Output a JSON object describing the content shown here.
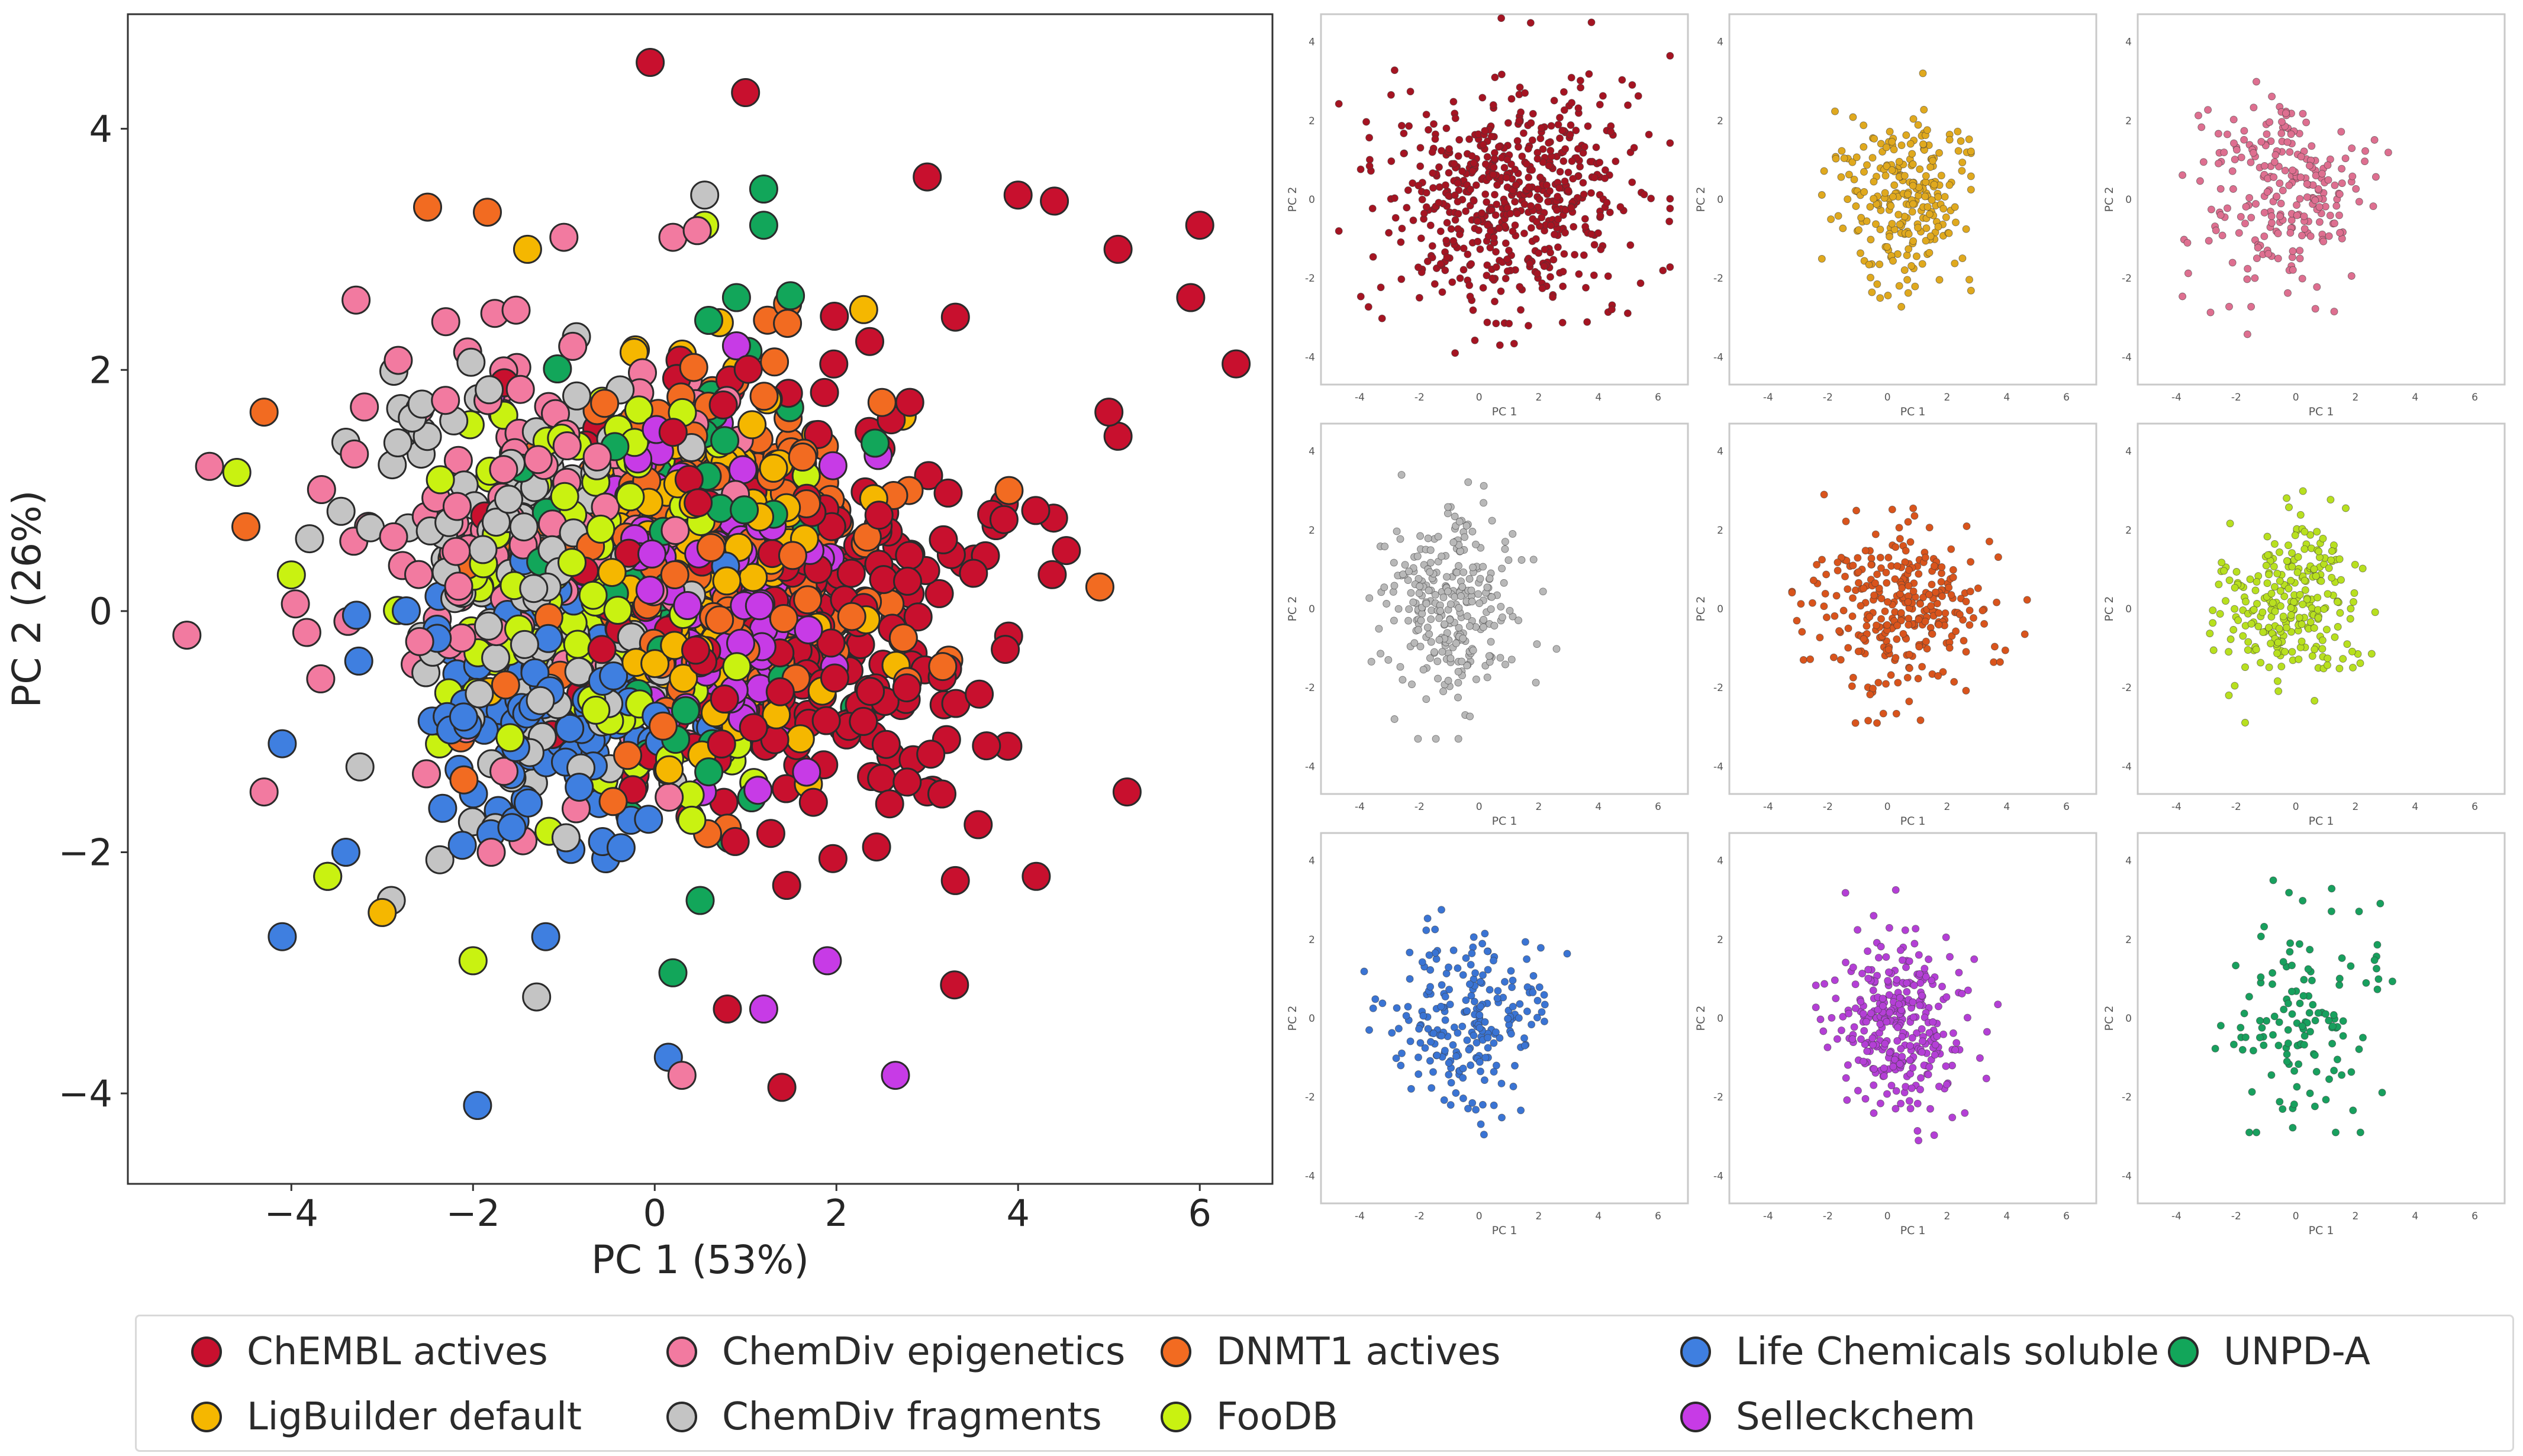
{
  "chart_data": [
    {
      "type": "scatter",
      "panel": "main",
      "title": "",
      "xlabel": "PC 1 (53%)",
      "ylabel": "PC 2 (26%)",
      "xlim": [
        -5.8,
        6.8
      ],
      "ylim": [
        -4.75,
        4.95
      ],
      "xticks": [
        -4,
        -2,
        0,
        2,
        4,
        6
      ],
      "xtick_labels": [
        "−4",
        "−2",
        "0",
        "2",
        "4",
        "6"
      ],
      "yticks": [
        -4,
        -2,
        0,
        2,
        4
      ],
      "ytick_labels": [
        "−4",
        "−2",
        "0",
        "2",
        "4"
      ],
      "grid": false,
      "series": [
        {
          "name": "ChEMBL actives",
          "color": "#c8102e",
          "approx_points": 520,
          "center": [
            1.6,
            0.0
          ],
          "spread": [
            1.7,
            1.3
          ],
          "representative_points": [
            [
              -0.05,
              4.55
            ],
            [
              1.0,
              4.3
            ],
            [
              3.0,
              3.6
            ],
            [
              4.0,
              3.45
            ],
            [
              4.4,
              3.4
            ],
            [
              5.1,
              3.0
            ],
            [
              6.0,
              3.2
            ],
            [
              5.9,
              2.6
            ],
            [
              6.4,
              2.05
            ],
            [
              5.0,
              1.65
            ],
            [
              5.1,
              1.45
            ],
            [
              5.2,
              -1.5
            ],
            [
              4.2,
              -2.2
            ],
            [
              3.3,
              -3.1
            ],
            [
              1.4,
              -3.95
            ],
            [
              0.8,
              -3.3
            ],
            [
              2.6,
              -1.2
            ],
            [
              3.0,
              -1.5
            ]
          ]
        },
        {
          "name": "ChemDiv epigenetics",
          "color": "#f27aa0",
          "approx_points": 300,
          "center": [
            -1.2,
            0.5
          ],
          "spread": [
            1.4,
            1.2
          ],
          "representative_points": [
            [
              -5.15,
              -0.2
            ],
            [
              -4.9,
              1.2
            ],
            [
              -2.3,
              2.4
            ],
            [
              -1.0,
              3.1
            ],
            [
              0.2,
              3.1
            ],
            [
              -4.3,
              -1.5
            ],
            [
              0.3,
              -3.85
            ],
            [
              -1.8,
              -2.0
            ]
          ]
        },
        {
          "name": "DNMT1 actives",
          "color": "#f26b21",
          "approx_points": 380,
          "center": [
            0.6,
            0.4
          ],
          "spread": [
            1.6,
            1.1
          ],
          "representative_points": [
            [
              -2.5,
              3.35
            ],
            [
              -4.3,
              1.65
            ],
            [
              -4.5,
              0.7
            ],
            [
              4.9,
              0.2
            ],
            [
              3.9,
              1.0
            ],
            [
              2.8,
              1.0
            ],
            [
              -2.1,
              -1.4
            ],
            [
              0.8,
              -1.8
            ]
          ]
        },
        {
          "name": "Life Chemicals soluble",
          "color": "#3f7fe0",
          "approx_points": 280,
          "center": [
            -1.0,
            -0.6
          ],
          "spread": [
            1.1,
            0.9
          ],
          "representative_points": [
            [
              -1.95,
              -4.1
            ],
            [
              0.15,
              -3.7
            ],
            [
              -4.1,
              -2.7
            ],
            [
              -3.4,
              -2.0
            ],
            [
              -1.2,
              -2.7
            ],
            [
              -4.1,
              -1.1
            ]
          ]
        },
        {
          "name": "UNPD-A",
          "color": "#12a65a",
          "approx_points": 160,
          "center": [
            0.4,
            0.6
          ],
          "spread": [
            1.2,
            1.2
          ],
          "representative_points": [
            [
              1.2,
              3.5
            ],
            [
              0.9,
              2.6
            ],
            [
              1.2,
              3.2
            ],
            [
              0.5,
              -2.4
            ],
            [
              0.2,
              -3.0
            ],
            [
              2.2,
              -0.8
            ]
          ]
        },
        {
          "name": "LigBuilder default",
          "color": "#f5b700",
          "approx_points": 320,
          "center": [
            0.6,
            0.3
          ],
          "spread": [
            1.0,
            0.9
          ],
          "representative_points": [
            [
              -1.4,
              3.0
            ],
            [
              0.9,
              2.0
            ],
            [
              2.3,
              2.5
            ],
            [
              -3.6,
              -2.2
            ],
            [
              -3.0,
              -2.5
            ]
          ]
        },
        {
          "name": "ChemDiv fragments",
          "color": "#c4c4c4",
          "approx_points": 360,
          "center": [
            -1.2,
            0.2
          ],
          "spread": [
            1.2,
            1.2
          ],
          "representative_points": [
            [
              0.55,
              3.45
            ],
            [
              -3.4,
              1.4
            ],
            [
              -3.8,
              0.6
            ],
            [
              -1.3,
              -3.2
            ],
            [
              -2.9,
              -2.4
            ]
          ]
        },
        {
          "name": "FooDB",
          "color": "#c9f211",
          "approx_points": 330,
          "center": [
            -0.6,
            0.2
          ],
          "spread": [
            1.2,
            1.0
          ],
          "representative_points": [
            [
              -4.6,
              1.15
            ],
            [
              -4.0,
              0.3
            ],
            [
              -3.6,
              -2.2
            ],
            [
              -2.0,
              -2.9
            ],
            [
              0.55,
              3.2
            ]
          ]
        },
        {
          "name": "Selleckchem",
          "color": "#c73be6",
          "approx_points": 390,
          "center": [
            0.6,
            0.1
          ],
          "spread": [
            0.9,
            0.8
          ],
          "representative_points": [
            [
              2.65,
              -3.85
            ],
            [
              1.9,
              -2.9
            ],
            [
              1.2,
              -3.3
            ],
            [
              -1.8,
              1.8
            ],
            [
              0.9,
              2.2
            ]
          ]
        }
      ]
    },
    {
      "type": "scatter",
      "panel": "small-1",
      "series_name": "ChEMBL actives",
      "color": "#a51422",
      "xlabel": "PC 1",
      "ylabel": "PC 2",
      "xlim": [
        -5.3,
        7.0
      ],
      "ylim": [
        -4.7,
        4.7
      ],
      "xticks": [
        -4,
        -2,
        0,
        2,
        4,
        6
      ],
      "yticks": [
        -4,
        -2,
        0,
        2,
        4
      ],
      "approx_points": 750,
      "center": [
        0.9,
        0.0
      ],
      "spread": [
        2.1,
        1.4
      ],
      "x_range": [
        -4.7,
        6.4
      ],
      "y_range": [
        -3.9,
        4.6
      ]
    },
    {
      "type": "scatter",
      "panel": "small-2",
      "series_name": "LigBuilder default",
      "color": "#e0a91e",
      "approx_points": 320,
      "xlabel": "PC 1",
      "ylabel": "PC 2",
      "xlim": [
        -5.3,
        7.0
      ],
      "ylim": [
        -4.7,
        4.7
      ],
      "xticks": [
        -4,
        -2,
        0,
        2,
        4,
        6
      ],
      "yticks": [
        -4,
        -2,
        0,
        2,
        4
      ],
      "center": [
        0.5,
        0.1
      ],
      "spread": [
        1.1,
        1.1
      ],
      "x_range": [
        -2.2,
        2.8
      ],
      "y_range": [
        -3.0,
        3.2
      ]
    },
    {
      "type": "scatter",
      "panel": "small-3",
      "series_name": "ChemDiv epigenetics",
      "color": "#de6f90",
      "approx_points": 300,
      "xlabel": "PC 1",
      "ylabel": "PC 2",
      "xlim": [
        -5.3,
        7.0
      ],
      "ylim": [
        -4.7,
        4.7
      ],
      "xticks": [
        -4,
        -2,
        0,
        2,
        4,
        6
      ],
      "yticks": [
        -4,
        -2,
        0,
        2,
        4
      ],
      "center": [
        -0.5,
        0.3
      ],
      "spread": [
        1.3,
        1.2
      ],
      "x_range": [
        -3.8,
        3.1
      ],
      "y_range": [
        -3.8,
        3.1
      ]
    },
    {
      "type": "scatter",
      "panel": "small-4",
      "series_name": "ChemDiv fragments",
      "color": "#b8b8b8",
      "approx_points": 360,
      "xlabel": "PC 1",
      "ylabel": "PC 2",
      "xlim": [
        -5.3,
        7.0
      ],
      "ylim": [
        -4.7,
        4.7
      ],
      "xticks": [
        -4,
        -2,
        0,
        2,
        4,
        6
      ],
      "yticks": [
        -4,
        -2,
        0,
        2,
        4
      ],
      "center": [
        -0.8,
        0.0
      ],
      "spread": [
        1.1,
        1.2
      ],
      "x_range": [
        -4.2,
        3.4
      ],
      "y_range": [
        -3.3,
        3.4
      ]
    },
    {
      "type": "scatter",
      "panel": "small-5",
      "series_name": "DNMT1 actives",
      "color": "#d9541c",
      "approx_points": 380,
      "xlabel": "PC 1",
      "ylabel": "PC 2",
      "xlim": [
        -5.3,
        7.0
      ],
      "ylim": [
        -4.7,
        4.7
      ],
      "xticks": [
        -4,
        -2,
        0,
        2,
        4,
        6
      ],
      "yticks": [
        -4,
        -2,
        0,
        2,
        4
      ],
      "center": [
        0.3,
        0.0
      ],
      "spread": [
        1.5,
        1.1
      ],
      "x_range": [
        -3.2,
        4.9
      ],
      "y_range": [
        -2.9,
        2.9
      ]
    },
    {
      "type": "scatter",
      "panel": "small-6",
      "series_name": "FooDB",
      "color": "#b8e01f",
      "approx_points": 330,
      "xlabel": "PC 1",
      "ylabel": "PC 2",
      "xlim": [
        -5.3,
        7.0
      ],
      "ylim": [
        -4.7,
        4.7
      ],
      "xticks": [
        -4,
        -2,
        0,
        2,
        4,
        6
      ],
      "yticks": [
        -4,
        -2,
        0,
        2,
        4
      ],
      "center": [
        -0.2,
        0.1
      ],
      "spread": [
        1.2,
        1.0
      ],
      "x_range": [
        -4.8,
        4.0
      ],
      "y_range": [
        -3.0,
        3.2
      ]
    },
    {
      "type": "scatter",
      "panel": "small-7",
      "series_name": "Life Chemicals soluble",
      "color": "#3a74d4",
      "approx_points": 280,
      "xlabel": "PC 1",
      "ylabel": "PC 2",
      "xlim": [
        -5.3,
        7.0
      ],
      "ylim": [
        -4.7,
        4.7
      ],
      "xticks": [
        -4,
        -2,
        0,
        2,
        4,
        6
      ],
      "yticks": [
        -4,
        -2,
        0,
        2,
        4
      ],
      "center": [
        -0.4,
        0.0
      ],
      "spread": [
        1.3,
        1.1
      ],
      "x_range": [
        -4.0,
        3.6
      ],
      "y_range": [
        -4.1,
        3.2
      ]
    },
    {
      "type": "scatter",
      "panel": "small-8",
      "series_name": "Selleckchem",
      "color": "#b43fd6",
      "approx_points": 390,
      "xlabel": "PC 1",
      "ylabel": "PC 2",
      "xlim": [
        -5.3,
        7.0
      ],
      "ylim": [
        -4.7,
        4.7
      ],
      "xticks": [
        -4,
        -2,
        0,
        2,
        4,
        6
      ],
      "yticks": [
        -4,
        -2,
        0,
        2,
        4
      ],
      "center": [
        0.4,
        -0.2
      ],
      "spread": [
        1.1,
        1.1
      ],
      "x_range": [
        -2.4,
        3.7
      ],
      "y_range": [
        -3.4,
        3.6
      ]
    },
    {
      "type": "scatter",
      "panel": "small-9",
      "series_name": "UNPD-A",
      "color": "#18a05e",
      "approx_points": 160,
      "xlabel": "PC 1",
      "ylabel": "PC 2",
      "xlim": [
        -5.3,
        7.0
      ],
      "ylim": [
        -4.7,
        4.7
      ],
      "xticks": [
        -4,
        -2,
        0,
        2,
        4,
        6
      ],
      "yticks": [
        -4,
        -2,
        0,
        2,
        4
      ],
      "center": [
        0.3,
        0.0
      ],
      "spread": [
        1.3,
        1.5
      ],
      "x_range": [
        -2.7,
        3.5
      ],
      "y_range": [
        -2.9,
        3.5
      ]
    }
  ],
  "legend": {
    "items": [
      {
        "label": "ChEMBL actives",
        "color": "#c8102e"
      },
      {
        "label": "ChemDiv epigenetics",
        "color": "#f27aa0"
      },
      {
        "label": "DNMT1 actives",
        "color": "#f26b21"
      },
      {
        "label": "Life Chemicals soluble",
        "color": "#3f7fe0"
      },
      {
        "label": "UNPD-A",
        "color": "#12a65a"
      },
      {
        "label": "LigBuilder default",
        "color": "#f5b700"
      },
      {
        "label": "ChemDiv fragments",
        "color": "#c4c4c4"
      },
      {
        "label": "FooDB",
        "color": "#c9f211"
      },
      {
        "label": "Selleckchem",
        "color": "#c73be6"
      }
    ]
  }
}
